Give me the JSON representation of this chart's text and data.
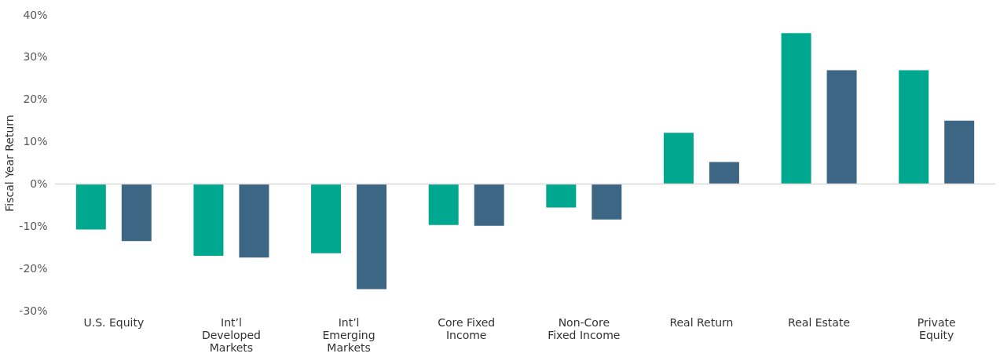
{
  "chart_data": {
    "type": "bar",
    "ylabel": "Fiscal Year Return",
    "categories": [
      "U.S. Equity",
      "Int’l Developed Markets",
      "Int’l Emerging Markets",
      "Core Fixed Income",
      "Non-Core Fixed Income",
      "Real Return",
      "Real Estate",
      "Private Equity"
    ],
    "series": [
      {
        "color": "#00a88f",
        "values": [
          -10.8,
          -17.0,
          -16.4,
          -9.7,
          -5.6,
          12.1,
          35.7,
          26.9
        ]
      },
      {
        "color": "#3d6684",
        "values": [
          -13.5,
          -17.4,
          -24.9,
          -9.9,
          -8.4,
          5.2,
          26.9,
          15.0
        ]
      }
    ],
    "ylim": [
      -30,
      40
    ],
    "yticks": [
      {
        "value": -30,
        "label": "-30%"
      },
      {
        "value": -20,
        "label": "-20%"
      },
      {
        "value": -10,
        "label": "-10%"
      },
      {
        "value": 0,
        "label": "0%"
      },
      {
        "value": 10,
        "label": "10%"
      },
      {
        "value": 20,
        "label": "20%"
      },
      {
        "value": 30,
        "label": "30%"
      },
      {
        "value": 40,
        "label": "40%"
      }
    ],
    "ref_lines": [
      {
        "axis": "y",
        "value": 0,
        "color": "#d9d9d9"
      }
    ],
    "grid": false,
    "legend": false
  }
}
